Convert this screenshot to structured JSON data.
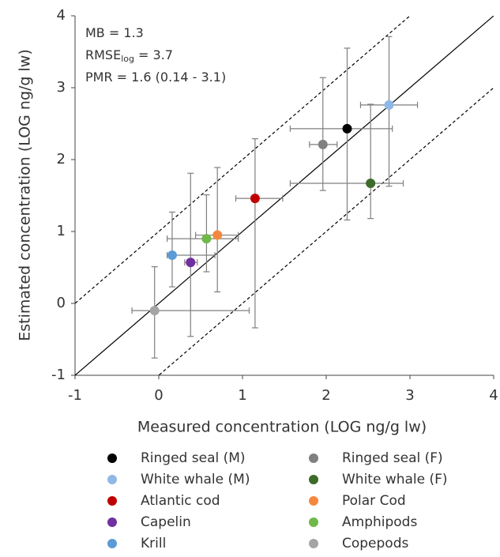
{
  "chart_data": {
    "type": "scatter",
    "x_label": "Measured concentration (LOG ng/g lw)",
    "y_label": "Estimated concentration (LOG ng/g lw)",
    "xlim": [
      -1,
      4
    ],
    "ylim": [
      -1,
      4
    ],
    "xticks": [
      -1,
      0,
      1,
      2,
      3,
      4
    ],
    "yticks": [
      -1,
      0,
      1,
      2,
      3,
      4
    ],
    "annotations": [
      {
        "text": "MB = 1.3"
      },
      {
        "text": "RMSE",
        "sub": "log",
        "rest": " = 3.7"
      },
      {
        "text": "PMR = 1.6 (0.14 - 3.1)"
      }
    ],
    "reference_lines": [
      {
        "intercept": 0,
        "style": "solid"
      },
      {
        "intercept": 1,
        "style": "dashed"
      },
      {
        "intercept": -1,
        "style": "dashed"
      }
    ],
    "error_color": "#7f7f7f",
    "series": [
      {
        "name": "Ringed seal (M)",
        "color": "#000000",
        "x": 2.25,
        "y": 2.43,
        "x_range": [
          1.57,
          2.79
        ],
        "y_range": [
          1.16,
          3.55
        ]
      },
      {
        "name": "Ringed seal (F)",
        "color": "#808080",
        "x": 1.96,
        "y": 2.21,
        "x_range": [
          1.8,
          2.13
        ],
        "y_range": [
          1.57,
          3.14
        ]
      },
      {
        "name": "White whale (M)",
        "color": "#8fb8e6",
        "x": 2.75,
        "y": 2.76,
        "x_range": [
          2.41,
          3.09
        ],
        "y_range": [
          1.63,
          3.71
        ]
      },
      {
        "name": "White whale (F)",
        "color": "#3d6b2a",
        "x": 2.53,
        "y": 1.67,
        "x_range": [
          1.57,
          2.92
        ],
        "y_range": [
          1.18,
          2.77
        ]
      },
      {
        "name": "Atlantic cod",
        "color": "#c00000",
        "x": 1.15,
        "y": 1.46,
        "x_range": [
          0.92,
          1.48
        ],
        "y_range": [
          -0.34,
          2.29
        ]
      },
      {
        "name": "Polar Cod",
        "color": "#f4873e",
        "x": 0.7,
        "y": 0.95,
        "x_range": [
          0.44,
          0.95
        ],
        "y_range": [
          0.16,
          1.89
        ]
      },
      {
        "name": "Capelin",
        "color": "#7030a0",
        "x": 0.38,
        "y": 0.57,
        "x_range": [
          0.31,
          0.46
        ],
        "y_range": [
          -0.46,
          1.81
        ]
      },
      {
        "name": "Amphipods",
        "color": "#70b84a",
        "x": 0.57,
        "y": 0.9,
        "x_range": [
          0.1,
          0.95
        ],
        "y_range": [
          0.44,
          1.51
        ]
      },
      {
        "name": "Krill",
        "color": "#5b9bd5",
        "x": 0.16,
        "y": 0.67,
        "x_range": [
          0.1,
          0.67
        ],
        "y_range": [
          0.23,
          1.27
        ]
      },
      {
        "name": "Copepods",
        "color": "#a5a5a5",
        "x": -0.05,
        "y": -0.1,
        "x_range": [
          -0.32,
          1.08
        ],
        "y_range": [
          -0.76,
          0.51
        ]
      }
    ]
  }
}
